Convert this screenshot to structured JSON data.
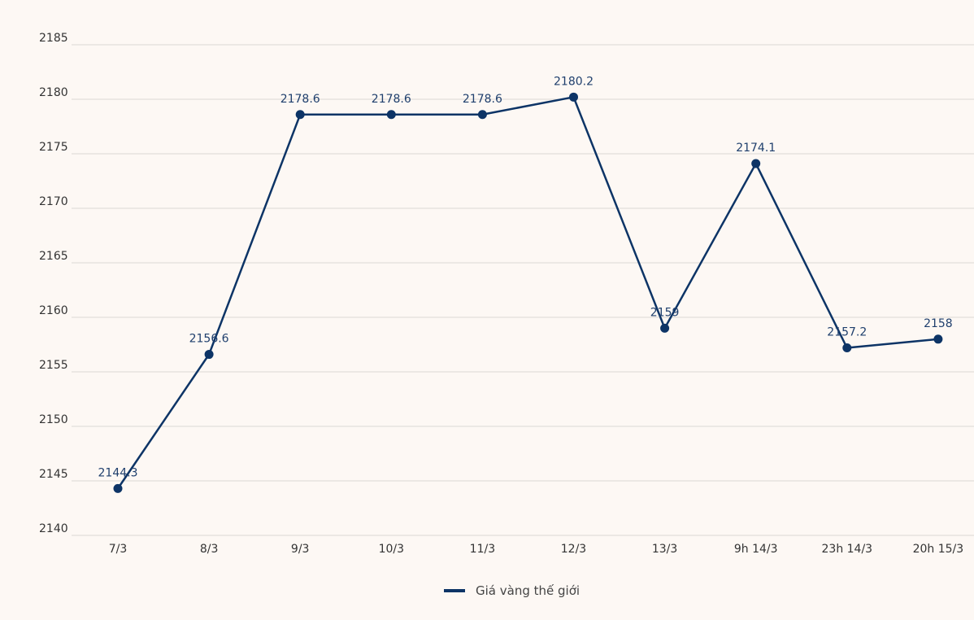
{
  "chart_data": {
    "type": "line",
    "title": "",
    "xlabel": "",
    "ylabel": "",
    "categories": [
      "7/3",
      "8/3",
      "9/3",
      "10/3",
      "11/3",
      "12/3",
      "13/3",
      "9h 14/3",
      "23h 14/3",
      "20h 15/3"
    ],
    "ylim": [
      2140,
      2185
    ],
    "yticks": [
      2140,
      2145,
      2150,
      2155,
      2160,
      2165,
      2170,
      2175,
      2180,
      2185
    ],
    "grid": true,
    "legend_position": "bottom-center",
    "series": [
      {
        "name": "Giá vàng thế giới",
        "color": "#0d3466",
        "values": [
          2144.3,
          2156.6,
          2178.6,
          2178.6,
          2178.6,
          2180.2,
          2159,
          2174.1,
          2157.2,
          2158
        ],
        "labels": [
          "2144.3",
          "2156.6",
          "2178.6",
          "2178.6",
          "2178.6",
          "2180.2",
          "2159",
          "2174.1",
          "2157.2",
          "2158"
        ]
      }
    ]
  }
}
